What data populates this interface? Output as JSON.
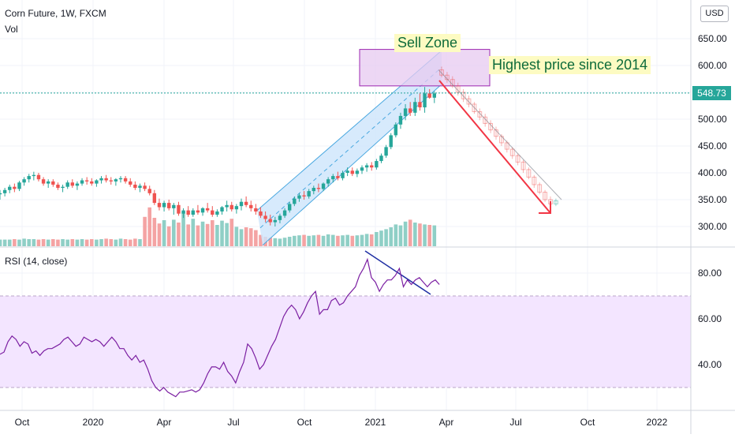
{
  "header": {
    "symbol_line": "Corn Future, 1W, FXCM",
    "volume_label": "Vol",
    "rsi_label": "RSI (14, close)",
    "currency_button": "USD",
    "last_price": "548.73"
  },
  "annotations": {
    "sell_zone": "Sell Zone",
    "highest_price": "Highest price since 2014"
  },
  "colors": {
    "up": "#26a69a",
    "down": "#ef5350",
    "volume_up": "#8fcfc6",
    "volume_down": "#f4a3a3",
    "rsi_line": "#7b1fa2",
    "rsi_band": "#f3e5ff",
    "channel_fill": "#cde5fb",
    "channel_line": "#4aa8e0",
    "sell_zone_fill": "#e7c9f0",
    "sell_zone_border": "#9c27b0",
    "projection_arrow": "#f23645",
    "divergence_line": "#1f2fa3",
    "grid": "#f0f3fa",
    "axis_text": "#131722"
  },
  "chart_data": [
    {
      "type": "candlestick",
      "title": "Corn Future, 1W, FXCM",
      "y_ticks": [
        300,
        350,
        400,
        450,
        500,
        550,
        600,
        650
      ],
      "x_ticks": [
        "Oct",
        "2020",
        "Apr",
        "Jul",
        "Oct",
        "2021",
        "Apr",
        "Jul",
        "Oct",
        "2022"
      ],
      "ylim": [
        265,
        700
      ],
      "last_price": 548.73,
      "candles_ohlc": [
        [
          360,
          368,
          350,
          362
        ],
        [
          362,
          372,
          356,
          368
        ],
        [
          368,
          378,
          362,
          374
        ],
        [
          374,
          380,
          364,
          370
        ],
        [
          370,
          385,
          366,
          382
        ],
        [
          382,
          392,
          376,
          388
        ],
        [
          388,
          398,
          382,
          394
        ],
        [
          394,
          402,
          386,
          396
        ],
        [
          396,
          400,
          384,
          388
        ],
        [
          388,
          392,
          376,
          380
        ],
        [
          380,
          388,
          372,
          384
        ],
        [
          384,
          388,
          374,
          378
        ],
        [
          378,
          382,
          368,
          372
        ],
        [
          372,
          378,
          364,
          374
        ],
        [
          374,
          386,
          370,
          382
        ],
        [
          382,
          388,
          372,
          376
        ],
        [
          376,
          384,
          368,
          380
        ],
        [
          380,
          390,
          376,
          386
        ],
        [
          386,
          392,
          378,
          384
        ],
        [
          384,
          390,
          376,
          380
        ],
        [
          380,
          388,
          374,
          386
        ],
        [
          386,
          394,
          380,
          390
        ],
        [
          390,
          396,
          382,
          386
        ],
        [
          386,
          392,
          378,
          384
        ],
        [
          384,
          390,
          376,
          388
        ],
        [
          388,
          394,
          382,
          390
        ],
        [
          390,
          394,
          380,
          384
        ],
        [
          384,
          390,
          374,
          378
        ],
        [
          378,
          384,
          368,
          372
        ],
        [
          372,
          380,
          364,
          376
        ],
        [
          376,
          382,
          366,
          370
        ],
        [
          370,
          376,
          358,
          362
        ],
        [
          362,
          368,
          340,
          344
        ],
        [
          344,
          352,
          330,
          336
        ],
        [
          336,
          348,
          328,
          344
        ],
        [
          344,
          350,
          330,
          334
        ],
        [
          334,
          344,
          322,
          340
        ],
        [
          340,
          346,
          320,
          324
        ],
        [
          324,
          334,
          316,
          330
        ],
        [
          330,
          338,
          318,
          322
        ],
        [
          322,
          334,
          318,
          330
        ],
        [
          330,
          340,
          322,
          326
        ],
        [
          326,
          336,
          320,
          334
        ],
        [
          334,
          344,
          326,
          330
        ],
        [
          330,
          338,
          318,
          322
        ],
        [
          322,
          332,
          318,
          328
        ],
        [
          328,
          338,
          322,
          336
        ],
        [
          336,
          348,
          328,
          340
        ],
        [
          340,
          346,
          328,
          332
        ],
        [
          332,
          342,
          324,
          338
        ],
        [
          338,
          352,
          330,
          346
        ],
        [
          346,
          356,
          336,
          340
        ],
        [
          340,
          348,
          328,
          334
        ],
        [
          334,
          342,
          322,
          328
        ],
        [
          328,
          336,
          316,
          320
        ],
        [
          320,
          328,
          308,
          314
        ],
        [
          314,
          322,
          302,
          308
        ],
        [
          308,
          318,
          300,
          312
        ],
        [
          312,
          324,
          306,
          320
        ],
        [
          320,
          334,
          316,
          330
        ],
        [
          330,
          346,
          326,
          342
        ],
        [
          342,
          356,
          338,
          352
        ],
        [
          352,
          362,
          346,
          358
        ],
        [
          358,
          366,
          350,
          356
        ],
        [
          356,
          370,
          352,
          366
        ],
        [
          366,
          376,
          360,
          372
        ],
        [
          372,
          380,
          364,
          370
        ],
        [
          370,
          382,
          366,
          380
        ],
        [
          380,
          392,
          374,
          388
        ],
        [
          388,
          398,
          382,
          394
        ],
        [
          394,
          402,
          386,
          390
        ],
        [
          390,
          404,
          386,
          400
        ],
        [
          400,
          410,
          394,
          404
        ],
        [
          404,
          410,
          394,
          398
        ],
        [
          398,
          408,
          392,
          404
        ],
        [
          404,
          414,
          398,
          410
        ],
        [
          410,
          418,
          402,
          414
        ],
        [
          414,
          420,
          404,
          410
        ],
        [
          410,
          426,
          406,
          422
        ],
        [
          422,
          436,
          418,
          432
        ],
        [
          432,
          452,
          428,
          448
        ],
        [
          448,
          474,
          444,
          470
        ],
        [
          470,
          494,
          466,
          490
        ],
        [
          490,
          512,
          482,
          506
        ],
        [
          506,
          528,
          498,
          520
        ],
        [
          520,
          532,
          506,
          512
        ],
        [
          512,
          540,
          506,
          532
        ],
        [
          532,
          548,
          516,
          522
        ],
        [
          522,
          560,
          512,
          548
        ],
        [
          548,
          556,
          538,
          540
        ],
        [
          540,
          552,
          530,
          548
        ]
      ],
      "projection_ohlc": [
        [
          592,
          598,
          578,
          582
        ],
        [
          582,
          588,
          568,
          574
        ],
        [
          574,
          580,
          558,
          562
        ],
        [
          562,
          568,
          544,
          550
        ],
        [
          550,
          556,
          532,
          538
        ],
        [
          538,
          544,
          522,
          528
        ],
        [
          528,
          532,
          510,
          514
        ],
        [
          514,
          520,
          498,
          504
        ],
        [
          504,
          510,
          486,
          492
        ],
        [
          492,
          498,
          474,
          480
        ],
        [
          480,
          486,
          462,
          468
        ],
        [
          468,
          472,
          450,
          456
        ],
        [
          456,
          460,
          438,
          444
        ],
        [
          444,
          448,
          426,
          432
        ],
        [
          432,
          436,
          414,
          420
        ],
        [
          420,
          424,
          400,
          406
        ],
        [
          406,
          410,
          388,
          392
        ],
        [
          392,
          396,
          372,
          378
        ],
        [
          378,
          382,
          360,
          364
        ],
        [
          364,
          368,
          346,
          350
        ],
        [
          350,
          356,
          336,
          342
        ],
        [
          342,
          352,
          338,
          348
        ]
      ],
      "volume": [
        0.14,
        0.14,
        0.14,
        0.15,
        0.14,
        0.16,
        0.15,
        0.15,
        0.14,
        0.15,
        0.14,
        0.15,
        0.14,
        0.15,
        0.14,
        0.15,
        0.14,
        0.15,
        0.14,
        0.15,
        0.14,
        0.15,
        0.16,
        0.15,
        0.14,
        0.16,
        0.15,
        0.14,
        0.16,
        0.15,
        0.62,
        0.82,
        0.6,
        0.48,
        0.55,
        0.42,
        0.56,
        0.5,
        0.72,
        0.46,
        0.58,
        0.44,
        0.52,
        0.47,
        0.55,
        0.45,
        0.54,
        0.49,
        0.58,
        0.41,
        0.36,
        0.4,
        0.38,
        0.34,
        0.24,
        0.2,
        0.18,
        0.17,
        0.16,
        0.18,
        0.2,
        0.22,
        0.23,
        0.24,
        0.22,
        0.23,
        0.24,
        0.22,
        0.25,
        0.24,
        0.22,
        0.23,
        0.24,
        0.22,
        0.23,
        0.24,
        0.26,
        0.25,
        0.3,
        0.33,
        0.36,
        0.4,
        0.46,
        0.44,
        0.52,
        0.56,
        0.5,
        0.48,
        0.46,
        0.45,
        0.44
      ],
      "channel_prices": {
        "lower_start": 265,
        "lower_end": 565,
        "upper_start": 330,
        "upper_end": 628
      },
      "sell_zone_prices": {
        "top": 630,
        "bottom": 562
      },
      "arrow_prices": {
        "start": 572,
        "end": 325
      }
    },
    {
      "type": "line",
      "title": "RSI (14, close)",
      "y_ticks": [
        40,
        60,
        80
      ],
      "ylim": [
        20,
        93
      ],
      "band": [
        30,
        70
      ],
      "values": [
        44.5,
        45.5,
        50,
        52.5,
        51,
        48,
        50,
        49,
        45,
        46,
        44,
        46,
        47,
        47,
        48,
        49,
        51,
        52,
        50,
        48,
        49,
        52,
        51,
        50,
        51,
        50,
        48,
        50,
        52,
        50,
        47,
        47,
        44,
        42,
        44,
        41,
        42,
        38,
        33,
        30,
        28.5,
        30,
        28,
        27,
        26,
        28,
        28,
        28.5,
        29,
        28,
        29,
        32,
        36,
        39,
        39,
        38,
        41,
        37,
        35,
        32,
        37,
        41,
        49,
        47,
        43,
        38,
        40,
        44,
        48,
        51,
        56,
        61,
        64,
        66,
        64,
        60,
        63,
        67,
        70,
        72,
        62,
        64,
        64,
        68,
        69,
        66,
        67,
        70,
        72,
        74,
        79,
        82,
        86,
        78,
        76,
        72,
        75,
        77,
        77,
        79,
        82,
        74,
        77,
        75,
        77,
        78,
        76,
        74,
        76,
        77,
        75
      ]
    }
  ]
}
